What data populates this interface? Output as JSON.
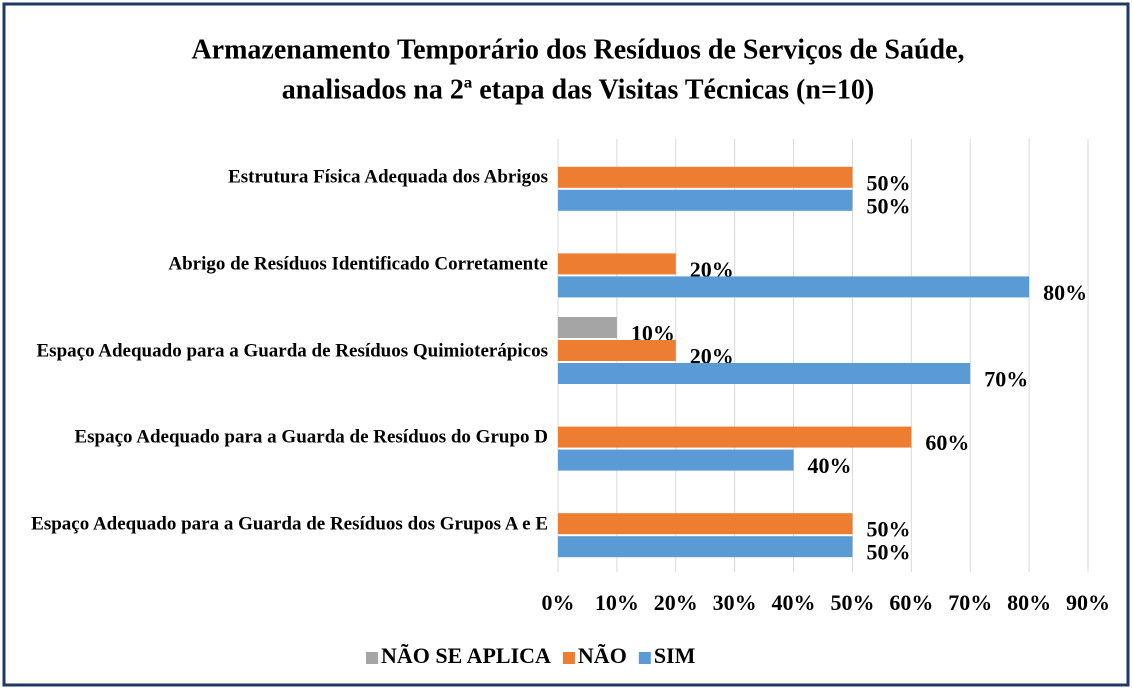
{
  "chart_data": {
    "type": "hbar",
    "title": [
      "Armazenamento Temporário dos Resíduos de Serviços de Saúde,",
      "analisados na 2ª etapa das Visitas Técnicas (n=10)"
    ],
    "categories": [
      "Estrutura Física Adequada dos Abrigos",
      "Abrigo de Resíduos Identificado Corretamente",
      "Espaço Adequado para a Guarda de Resíduos Quimioterápicos",
      "Espaço Adequado para a Guarda de Resíduos do Grupo D",
      "Espaço Adequado para a Guarda de Resíduos dos Grupos A e E"
    ],
    "series": [
      {
        "name": "NÃO SE APLICA",
        "color": "#a5a5a5",
        "values": [
          null,
          null,
          10,
          null,
          null
        ],
        "value_labels": [
          null,
          null,
          "10%",
          null,
          null
        ]
      },
      {
        "name": "NÃO",
        "color": "#ed7d31",
        "values": [
          50,
          20,
          20,
          60,
          50
        ],
        "value_labels": [
          "50%",
          "20%",
          "20%",
          "60%",
          "50%"
        ]
      },
      {
        "name": "SIM",
        "color": "#5b9bd5",
        "values": [
          50,
          80,
          70,
          40,
          50
        ],
        "value_labels": [
          "50%",
          "80%",
          "70%",
          "40%",
          "50%"
        ]
      }
    ],
    "xlim": [
      0,
      90
    ],
    "xticks": [
      {
        "value": 0,
        "label": "0%"
      },
      {
        "value": 10,
        "label": "10%"
      },
      {
        "value": 20,
        "label": "20%"
      },
      {
        "value": 30,
        "label": "30%"
      },
      {
        "value": 40,
        "label": "40%"
      },
      {
        "value": 50,
        "label": "50%"
      },
      {
        "value": 60,
        "label": "60%"
      },
      {
        "value": 70,
        "label": "70%"
      },
      {
        "value": 80,
        "label": "80%"
      },
      {
        "value": 90,
        "label": "90%"
      }
    ],
    "grid": true,
    "legend": "bottom"
  }
}
